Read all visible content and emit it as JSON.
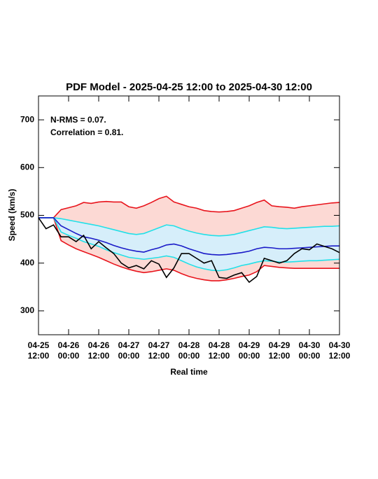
{
  "chart_data": {
    "type": "line",
    "title": "PDF Model - 2025-04-25 12:00 to 2025-04-30 12:00",
    "xlabel": "Real time",
    "ylabel": "Speed (km/s)",
    "annotations": [
      "N-RMS = 0.07.",
      "Correlation = 0.81."
    ],
    "x": [
      "04-25 12:00",
      "04-25 15:00",
      "04-25 18:00",
      "04-25 21:00",
      "04-26 00:00",
      "04-26 03:00",
      "04-26 06:00",
      "04-26 09:00",
      "04-26 12:00",
      "04-26 15:00",
      "04-26 18:00",
      "04-26 21:00",
      "04-27 00:00",
      "04-27 03:00",
      "04-27 06:00",
      "04-27 09:00",
      "04-27 12:00",
      "04-27 15:00",
      "04-27 18:00",
      "04-27 21:00",
      "04-28 00:00",
      "04-28 03:00",
      "04-28 06:00",
      "04-28 09:00",
      "04-28 12:00",
      "04-28 15:00",
      "04-28 18:00",
      "04-28 21:00",
      "04-29 00:00",
      "04-29 03:00",
      "04-29 06:00",
      "04-29 09:00",
      "04-29 12:00",
      "04-29 15:00",
      "04-29 18:00",
      "04-29 21:00",
      "04-30 00:00",
      "04-30 03:00",
      "04-30 06:00",
      "04-30 09:00",
      "04-30 12:00"
    ],
    "series": [
      {
        "color": "#e8141c",
        "values": [
          495,
          495,
          495,
          512,
          516,
          520,
          527,
          525,
          528,
          529,
          528,
          528,
          518,
          515,
          520,
          527,
          535,
          540,
          528,
          523,
          518,
          515,
          510,
          508,
          507,
          508,
          510,
          515,
          520,
          527,
          532,
          520,
          518,
          517,
          515,
          518,
          520,
          522,
          524,
          526,
          527
        ]
      },
      {
        "color": "#e8141c",
        "values": [
          495,
          495,
          495,
          447,
          438,
          430,
          424,
          418,
          412,
          405,
          398,
          392,
          387,
          383,
          380,
          382,
          385,
          388,
          385,
          378,
          372,
          368,
          365,
          363,
          363,
          365,
          368,
          372,
          375,
          382,
          395,
          393,
          391,
          390,
          389,
          389,
          389,
          389,
          389,
          389,
          389
        ]
      },
      {
        "color": "#22e0e8",
        "values": [
          495,
          495,
          495,
          493,
          490,
          487,
          484,
          481,
          478,
          474,
          470,
          466,
          462,
          460,
          462,
          468,
          474,
          480,
          478,
          472,
          467,
          463,
          460,
          458,
          457,
          458,
          460,
          464,
          468,
          472,
          476,
          475,
          473,
          472,
          473,
          474,
          475,
          476,
          477,
          477,
          478
        ]
      },
      {
        "color": "#22e0e8",
        "values": [
          495,
          495,
          495,
          465,
          458,
          452,
          445,
          440,
          435,
          428,
          422,
          417,
          412,
          410,
          408,
          410,
          412,
          415,
          412,
          405,
          398,
          392,
          388,
          385,
          384,
          386,
          390,
          395,
          398,
          402,
          405,
          404,
          402,
          402,
          403,
          404,
          405,
          405,
          406,
          407,
          408
        ]
      },
      {
        "color": "#1a1ac8",
        "values": [
          495,
          495,
          495,
          478,
          470,
          462,
          455,
          452,
          448,
          443,
          437,
          432,
          428,
          425,
          423,
          428,
          432,
          438,
          440,
          436,
          430,
          425,
          420,
          418,
          417,
          418,
          420,
          422,
          425,
          430,
          433,
          432,
          430,
          430,
          431,
          432,
          433,
          434,
          435,
          436,
          436
        ]
      },
      {
        "color": "#000000",
        "values": [
          495,
          472,
          480,
          455,
          455,
          445,
          458,
          430,
          445,
          432,
          420,
          400,
          390,
          395,
          388,
          405,
          398,
          370,
          390,
          420,
          420,
          410,
          400,
          405,
          370,
          368,
          375,
          380,
          360,
          372,
          410,
          405,
          400,
          405,
          420,
          430,
          428,
          440,
          435,
          430,
          422
        ]
      }
    ],
    "bands": [
      {
        "series": [
          0,
          1
        ],
        "color": "#fcd9d4"
      },
      {
        "series": [
          2,
          3
        ],
        "color": "#d6eefa"
      }
    ],
    "xlim": [
      "04-25 12:00",
      "04-30 12:00"
    ],
    "xticks": [
      "04-25 12:00",
      "04-26 00:00",
      "04-26 12:00",
      "04-27 00:00",
      "04-27 12:00",
      "04-28 00:00",
      "04-28 12:00",
      "04-29 00:00",
      "04-29 12:00",
      "04-30 00:00",
      "04-30 12:00"
    ],
    "ylim": [
      250,
      750
    ],
    "yticks": [
      300,
      400,
      500,
      600,
      700
    ],
    "grid": false
  }
}
